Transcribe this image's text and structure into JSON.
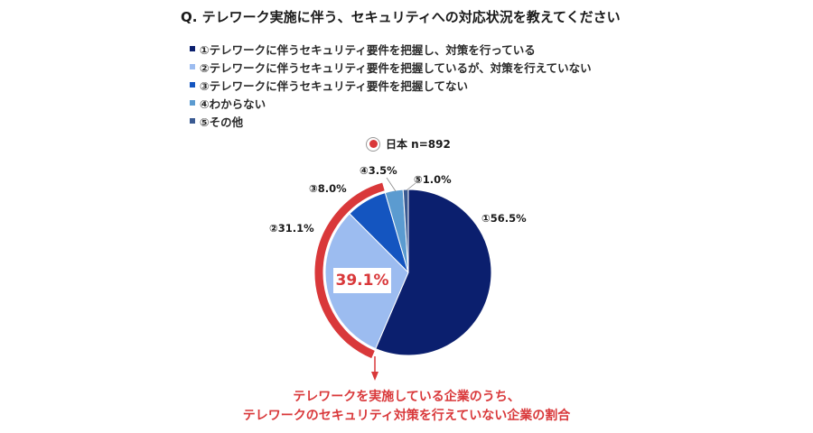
{
  "title": "Q. テレワーク実施に伴う、セキュリティへの対応状況を教えてください",
  "country_badge": {
    "label": "日本 n=892",
    "color": "#d9383a"
  },
  "highlight_value": "39.1%",
  "caption": [
    "テレワークを実施している企業のうち、",
    "テレワークのセキュリティ対策を行えていない企業の割合"
  ],
  "colors": {
    "highlight": "#d9383a"
  },
  "chart_data": {
    "type": "pie",
    "n": 892,
    "categories": [
      "①テレワークに伴うセキュリティ要件を把握し、対策を行っている",
      "②テレワークに伴うセキュリティ要件を把握しているが、対策を行えていない",
      "③テレワークに伴うセキュリティ要件を把握してない",
      "④わからない",
      "⑤その他"
    ],
    "values": [
      56.5,
      31.1,
      8.0,
      3.5,
      1.0
    ],
    "value_labels": [
      "①56.5%",
      "②31.1%",
      "③8.0%",
      "④3.5%",
      "⑤1.0%"
    ],
    "colors": [
      "#0b1f6e",
      "#9cbcf0",
      "#1455c0",
      "#5b9bd0",
      "#3a5a92"
    ],
    "highlighted_total": 39.1,
    "legend_position": "top-left"
  }
}
